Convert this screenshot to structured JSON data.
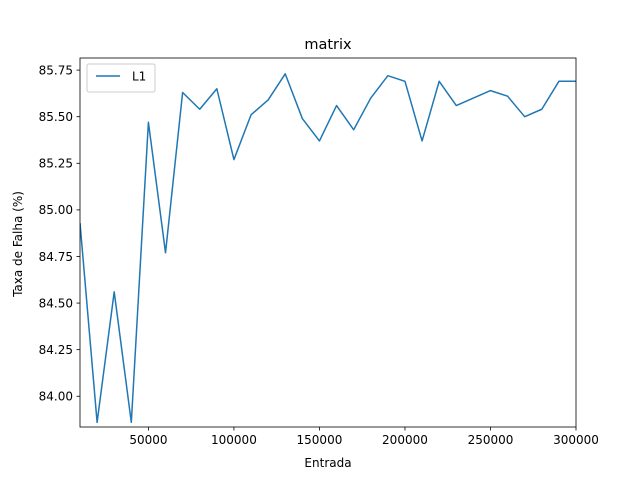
{
  "chart_data": {
    "type": "line",
    "title": "matrix",
    "xlabel": "Entrada",
    "ylabel": "Taxa de Falha (%)",
    "xlim": [
      10000,
      300000
    ],
    "ylim": [
      83.835,
      85.815
    ],
    "xticks": [
      50000,
      100000,
      150000,
      200000,
      250000,
      300000
    ],
    "xtick_labels": [
      "50000",
      "100000",
      "150000",
      "200000",
      "250000",
      "300000"
    ],
    "yticks": [
      84.0,
      84.25,
      84.5,
      84.75,
      85.0,
      85.25,
      85.5,
      85.75
    ],
    "ytick_labels": [
      "84.00",
      "84.25",
      "84.50",
      "84.75",
      "85.00",
      "85.25",
      "85.50",
      "85.75"
    ],
    "legend_position": "upper-left",
    "series": [
      {
        "name": "L1",
        "color": "#1f77b4",
        "x": [
          10000,
          20000,
          30000,
          40000,
          50000,
          60000,
          70000,
          80000,
          90000,
          100000,
          110000,
          120000,
          130000,
          140000,
          150000,
          160000,
          170000,
          180000,
          190000,
          200000,
          210000,
          220000,
          230000,
          240000,
          250000,
          260000,
          270000,
          280000,
          290000,
          300000
        ],
        "y": [
          84.93,
          83.86,
          84.56,
          83.86,
          85.47,
          84.77,
          85.63,
          85.54,
          85.65,
          85.27,
          85.51,
          85.59,
          85.73,
          85.49,
          85.37,
          85.56,
          85.43,
          85.6,
          85.72,
          85.69,
          85.37,
          85.69,
          85.56,
          85.6,
          85.64,
          85.61,
          85.5,
          85.54,
          85.69,
          85.69
        ]
      }
    ]
  }
}
